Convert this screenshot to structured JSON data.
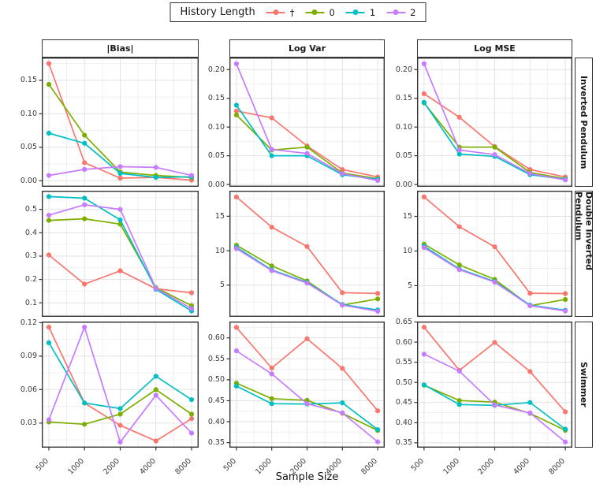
{
  "legend": {
    "title": "History Length",
    "items": [
      {
        "label": "†",
        "color": "#F8766D"
      },
      {
        "label": "0",
        "color": "#7CAE00"
      },
      {
        "label": "1",
        "color": "#00BFC4"
      },
      {
        "label": "2",
        "color": "#C77CFF"
      }
    ]
  },
  "axis": {
    "x_title": "Sample Size",
    "x_tick_labels": [
      "500",
      "1000",
      "2000",
      "4000",
      "8000"
    ]
  },
  "facets": {
    "col_labels": [
      "|Bias|",
      "Log Var",
      "Log MSE"
    ],
    "row_labels": [
      "Inverted Pendulum",
      "Double Inverted Pendulum",
      "Swimmer"
    ]
  },
  "chart_data": {
    "type": "line",
    "x": [
      500,
      1000,
      2000,
      4000,
      8000
    ],
    "x_scale": "log2-equal-spacing",
    "grid": "major+minor",
    "legend_position": "top",
    "series_names": [
      "†",
      "0",
      "1",
      "2"
    ],
    "colors": {
      "†": "#F8766D",
      "0": "#7CAE00",
      "1": "#00BFC4",
      "2": "#C77CFF"
    },
    "panels": [
      {
        "row": "Inverted Pendulum",
        "col": "|Bias|",
        "ylim": [
          -0.009,
          0.184
        ],
        "yticks": [
          0.0,
          0.05,
          0.1,
          0.15
        ],
        "ytick_labels": [
          "0.00",
          "0.05",
          "0.10",
          "0.15"
        ],
        "series": [
          {
            "name": "†",
            "values": [
              0.175,
              0.027,
              0.004,
              0.005,
              0.001
            ]
          },
          {
            "name": "0",
            "values": [
              0.144,
              0.068,
              0.013,
              0.008,
              0.005
            ]
          },
          {
            "name": "1",
            "values": [
              0.071,
              0.056,
              0.011,
              0.005,
              0.006
            ]
          },
          {
            "name": "2",
            "values": [
              0.008,
              0.017,
              0.021,
              0.02,
              0.008
            ]
          }
        ]
      },
      {
        "row": "Inverted Pendulum",
        "col": "Log Var",
        "ylim": [
          -0.004,
          0.221
        ],
        "yticks": [
          0.0,
          0.05,
          0.1,
          0.15,
          0.2
        ],
        "ytick_labels": [
          "0.00",
          "0.05",
          "0.10",
          "0.15",
          "0.20"
        ],
        "series": [
          {
            "name": "†",
            "values": [
              0.128,
              0.116,
              0.067,
              0.026,
              0.013
            ]
          },
          {
            "name": "0",
            "values": [
              0.121,
              0.06,
              0.065,
              0.02,
              0.01
            ]
          },
          {
            "name": "1",
            "values": [
              0.138,
              0.05,
              0.05,
              0.017,
              0.009
            ]
          },
          {
            "name": "2",
            "values": [
              0.21,
              0.061,
              0.054,
              0.019,
              0.007
            ]
          }
        ]
      },
      {
        "row": "Inverted Pendulum",
        "col": "Log MSE",
        "ylim": [
          -0.004,
          0.221
        ],
        "yticks": [
          0.0,
          0.05,
          0.1,
          0.15,
          0.2
        ],
        "ytick_labels": [
          "0.00",
          "0.05",
          "0.10",
          "0.15",
          "0.20"
        ],
        "series": [
          {
            "name": "†",
            "values": [
              0.158,
              0.117,
              0.066,
              0.026,
              0.013
            ]
          },
          {
            "name": "0",
            "values": [
              0.142,
              0.065,
              0.065,
              0.021,
              0.01
            ]
          },
          {
            "name": "1",
            "values": [
              0.143,
              0.053,
              0.049,
              0.017,
              0.009
            ]
          },
          {
            "name": "2",
            "values": [
              0.21,
              0.06,
              0.052,
              0.019,
              0.008
            ]
          }
        ]
      },
      {
        "row": "Double Inverted Pendulum",
        "col": "|Bias|",
        "ylim": [
          0.04,
          0.58
        ],
        "yticks": [
          0.1,
          0.2,
          0.3,
          0.4,
          0.5
        ],
        "ytick_labels": [
          "0.1",
          "0.2",
          "0.3",
          "0.4",
          "0.5"
        ],
        "series": [
          {
            "name": "†",
            "values": [
              0.305,
              0.18,
              0.237,
              0.16,
              0.143
            ]
          },
          {
            "name": "0",
            "values": [
              0.453,
              0.46,
              0.437,
              0.165,
              0.088
            ]
          },
          {
            "name": "1",
            "values": [
              0.555,
              0.548,
              0.455,
              0.158,
              0.065
            ]
          },
          {
            "name": "2",
            "values": [
              0.475,
              0.52,
              0.5,
              0.162,
              0.075
            ]
          }
        ]
      },
      {
        "row": "Double Inverted Pendulum",
        "col": "Log Var",
        "ylim": [
          0.4,
          18.7
        ],
        "yticks": [
          5,
          10,
          15
        ],
        "ytick_labels": [
          "5",
          "10",
          "15"
        ],
        "series": [
          {
            "name": "†",
            "values": [
              17.8,
              13.4,
              10.6,
              3.9,
              3.8
            ]
          },
          {
            "name": "0",
            "values": [
              10.8,
              7.8,
              5.6,
              2.1,
              3.0
            ]
          },
          {
            "name": "1",
            "values": [
              10.5,
              7.2,
              5.4,
              2.2,
              1.4
            ]
          },
          {
            "name": "2",
            "values": [
              10.3,
              7.1,
              5.3,
              2.1,
              1.2
            ]
          }
        ]
      },
      {
        "row": "Double Inverted Pendulum",
        "col": "Log MSE",
        "ylim": [
          0.5,
          18.7
        ],
        "yticks": [
          5,
          10,
          15
        ],
        "ytick_labels": [
          "5",
          "10",
          "15"
        ],
        "series": [
          {
            "name": "†",
            "values": [
              17.8,
              13.5,
              10.6,
              3.9,
              3.85
            ]
          },
          {
            "name": "0",
            "values": [
              11.0,
              8.0,
              5.9,
              2.1,
              3.0
            ]
          },
          {
            "name": "1",
            "values": [
              10.7,
              7.4,
              5.6,
              2.2,
              1.45
            ]
          },
          {
            "name": "2",
            "values": [
              10.5,
              7.3,
              5.5,
              2.1,
              1.35
            ]
          }
        ]
      },
      {
        "row": "Swimmer",
        "col": "|Bias|",
        "ylim": [
          0.008,
          0.121
        ],
        "yticks": [
          0.03,
          0.06,
          0.09,
          0.12
        ],
        "ytick_labels": [
          "0.03",
          "0.06",
          "0.09",
          "0.12"
        ],
        "series": [
          {
            "name": "†",
            "values": [
              0.116,
              0.048,
              0.028,
              0.014,
              0.034
            ]
          },
          {
            "name": "0",
            "values": [
              0.031,
              0.029,
              0.038,
              0.06,
              0.038
            ]
          },
          {
            "name": "1",
            "values": [
              0.102,
              0.048,
              0.043,
              0.072,
              0.051
            ]
          },
          {
            "name": "2",
            "values": [
              0.033,
              0.116,
              0.013,
              0.055,
              0.021
            ]
          }
        ]
      },
      {
        "row": "Swimmer",
        "col": "Log Var",
        "ylim": [
          0.338,
          0.639
        ],
        "yticks": [
          0.35,
          0.4,
          0.45,
          0.5,
          0.55,
          0.6
        ],
        "ytick_labels": [
          "0.35",
          "0.40",
          "0.45",
          "0.50",
          "0.55",
          "0.60"
        ],
        "series": [
          {
            "name": "†",
            "values": [
              0.625,
              0.528,
              0.598,
              0.527,
              0.426
            ]
          },
          {
            "name": "0",
            "values": [
              0.492,
              0.455,
              0.451,
              0.42,
              0.379
            ]
          },
          {
            "name": "1",
            "values": [
              0.485,
              0.443,
              0.442,
              0.445,
              0.381
            ]
          },
          {
            "name": "2",
            "values": [
              0.569,
              0.514,
              0.443,
              0.421,
              0.352
            ]
          }
        ]
      },
      {
        "row": "Swimmer",
        "col": "Log MSE",
        "ylim": [
          0.338,
          0.651
        ],
        "yticks": [
          0.35,
          0.4,
          0.45,
          0.5,
          0.55,
          0.6,
          0.65
        ],
        "ytick_labels": [
          "0.35",
          "0.40",
          "0.45",
          "0.50",
          "0.55",
          "0.60",
          "0.65"
        ],
        "series": [
          {
            "name": "†",
            "values": [
              0.637,
              0.53,
              0.599,
              0.527,
              0.427
            ]
          },
          {
            "name": "0",
            "values": [
              0.493,
              0.455,
              0.451,
              0.423,
              0.381
            ]
          },
          {
            "name": "1",
            "values": [
              0.494,
              0.445,
              0.443,
              0.45,
              0.384
            ]
          },
          {
            "name": "2",
            "values": [
              0.57,
              0.528,
              0.444,
              0.424,
              0.352
            ]
          }
        ]
      }
    ]
  }
}
